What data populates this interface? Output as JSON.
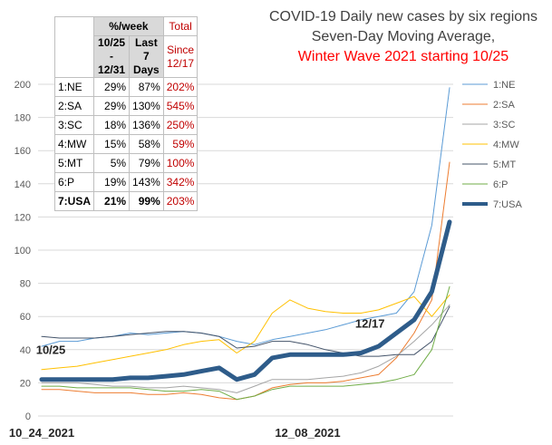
{
  "title": {
    "line1": "COVID-19 Daily new cases by six regions",
    "line2": "Seven-Day Moving Average,",
    "line3": "Winter Wave 2021 starting 10/25"
  },
  "table": {
    "header": {
      "pct_week": "%/week",
      "col1": [
        "10/25",
        "-",
        "12/31"
      ],
      "col2": [
        "Last",
        "7",
        "Days"
      ],
      "total": "Total",
      "since": "Since",
      "since_date": "12/17"
    },
    "rows": [
      {
        "label": "1:NE",
        "a": "29%",
        "b": "87%",
        "c": "202%"
      },
      {
        "label": "2:SA",
        "a": "29%",
        "b": "130%",
        "c": "545%"
      },
      {
        "label": "3:SC",
        "a": "18%",
        "b": "136%",
        "c": "250%"
      },
      {
        "label": "4:MW",
        "a": "15%",
        "b": "58%",
        "c": "59%"
      },
      {
        "label": "5:MT",
        "a": "5%",
        "b": "79%",
        "c": "100%"
      },
      {
        "label": "6:P",
        "a": "19%",
        "b": "143%",
        "c": "342%"
      },
      {
        "label": "7:USA",
        "a": "21%",
        "b": "99%",
        "c": "203%"
      }
    ]
  },
  "chart_data": {
    "type": "line",
    "title": "COVID-19 Daily new cases by six regions Seven-Day Moving Average, Winter Wave 2021 starting 10/25",
    "xlabel": "",
    "ylabel": "",
    "x_tick_labels": [
      "10_24_2021",
      "12_08_2021"
    ],
    "x": [
      "10/24",
      "10/27",
      "10/30",
      "11/02",
      "11/05",
      "11/08",
      "11/11",
      "11/14",
      "11/17",
      "11/20",
      "11/23",
      "11/26",
      "11/29",
      "12/02",
      "12/05",
      "12/08",
      "12/11",
      "12/14",
      "12/17",
      "12/20",
      "12/23",
      "12/26",
      "12/29",
      "01/01"
    ],
    "ylim": [
      0,
      200
    ],
    "yticks": [
      0,
      20,
      40,
      60,
      80,
      100,
      120,
      140,
      160,
      180,
      200
    ],
    "grid": "horizontal",
    "legend_position": "right",
    "series": [
      {
        "name": "1:NE",
        "color": "#5b9bd5",
        "width": 1,
        "values": [
          42,
          45,
          45,
          47,
          48,
          50,
          49,
          50,
          51,
          50,
          48,
          45,
          43,
          46,
          48,
          50,
          52,
          55,
          58,
          60,
          62,
          75,
          115,
          198
        ]
      },
      {
        "name": "2:SA",
        "color": "#ed7d31",
        "width": 1,
        "values": [
          16,
          16,
          15,
          14,
          14,
          14,
          13,
          13,
          14,
          13,
          11,
          10,
          12,
          17,
          19,
          20,
          20,
          21,
          23,
          25,
          35,
          50,
          70,
          153
        ]
      },
      {
        "name": "3:SC",
        "color": "#a5a5a5",
        "width": 1,
        "values": [
          20,
          20,
          20,
          19,
          18,
          18,
          17,
          17,
          18,
          17,
          16,
          14,
          18,
          22,
          22,
          22,
          23,
          24,
          26,
          30,
          36,
          45,
          55,
          67
        ]
      },
      {
        "name": "4:MW",
        "color": "#ffc000",
        "width": 1,
        "values": [
          28,
          29,
          30,
          32,
          34,
          36,
          38,
          40,
          43,
          45,
          46,
          38,
          45,
          62,
          70,
          65,
          63,
          62,
          62,
          64,
          68,
          72,
          60,
          73
        ]
      },
      {
        "name": "5:MT",
        "color": "#44546a",
        "width": 1,
        "values": [
          48,
          47,
          47,
          47,
          48,
          49,
          50,
          51,
          51,
          50,
          48,
          41,
          42,
          45,
          45,
          43,
          40,
          38,
          36,
          36,
          37,
          37,
          45,
          66
        ]
      },
      {
        "name": "6:P",
        "color": "#70ad47",
        "width": 1,
        "values": [
          18,
          18,
          17,
          17,
          17,
          17,
          16,
          15,
          15,
          16,
          15,
          10,
          12,
          16,
          18,
          18,
          18,
          18,
          19,
          20,
          22,
          25,
          40,
          78
        ]
      },
      {
        "name": "7:USA",
        "color": "#2e5c8a",
        "width": 5,
        "values": [
          22,
          22,
          22,
          22,
          22,
          23,
          23,
          24,
          25,
          27,
          29,
          22,
          25,
          35,
          37,
          37,
          37,
          37,
          38,
          42,
          50,
          58,
          75,
          117
        ]
      }
    ],
    "annotations": [
      {
        "text": "10/25",
        "x": "10/24",
        "y": 22
      },
      {
        "text": "12/17",
        "x": "12/17",
        "y": 38
      }
    ]
  }
}
